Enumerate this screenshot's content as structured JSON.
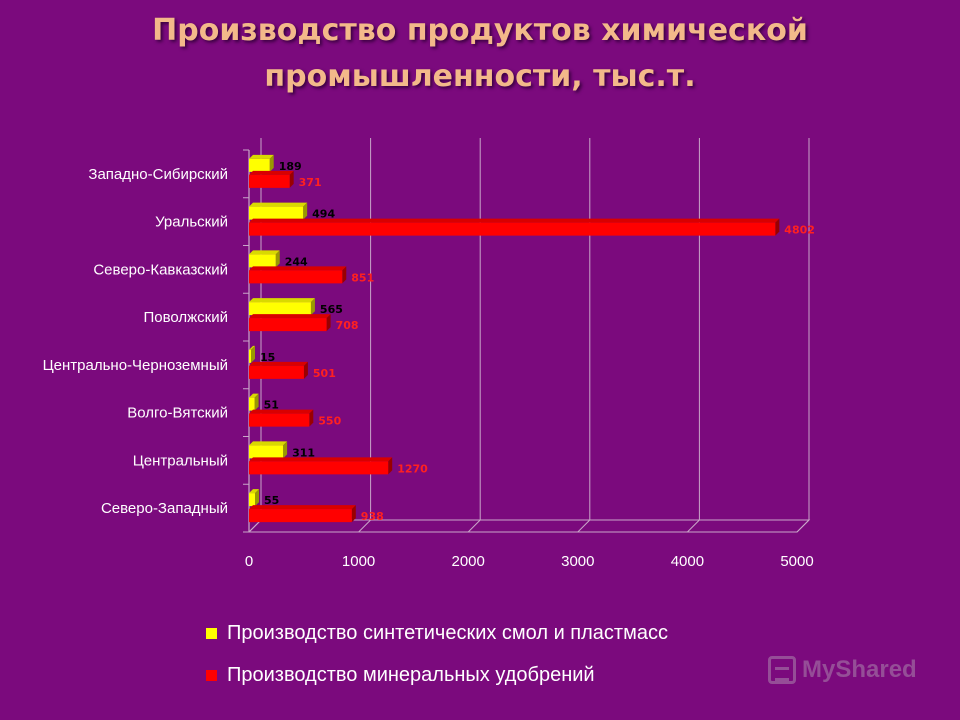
{
  "title": "Производство продуктов химической промышленности, тыс.т.",
  "colors": {
    "background": "#7b0a7d",
    "series1": "#ffff00",
    "series2": "#ff0000",
    "label1": "#000000",
    "label2": "#ff2020",
    "grid": "#c9a6c9",
    "text": "#ffffff"
  },
  "chart_data": {
    "type": "bar",
    "orientation": "horizontal",
    "title": "Производство продуктов химической промышленности, тыс.т.",
    "categories": [
      "Западно-Сибирский",
      "Уральский",
      "Северо-Кавказский",
      "Поволжский",
      "Центрально-Черноземный",
      "Волго-Вятский",
      "Центральный",
      "Северо-Западный"
    ],
    "series": [
      {
        "name": "Производство синтетических смол и пластмасс",
        "values": [
          189,
          494,
          244,
          565,
          15,
          51,
          311,
          55
        ]
      },
      {
        "name": "Производство минеральных удобрений",
        "values": [
          371,
          4802,
          851,
          708,
          501,
          550,
          1270,
          938
        ]
      }
    ],
    "xlim": [
      0,
      5000
    ],
    "xticks": [
      0,
      1000,
      2000,
      3000,
      4000,
      5000
    ],
    "grid": true,
    "legend_position": "bottom"
  },
  "watermark": "MyShared"
}
